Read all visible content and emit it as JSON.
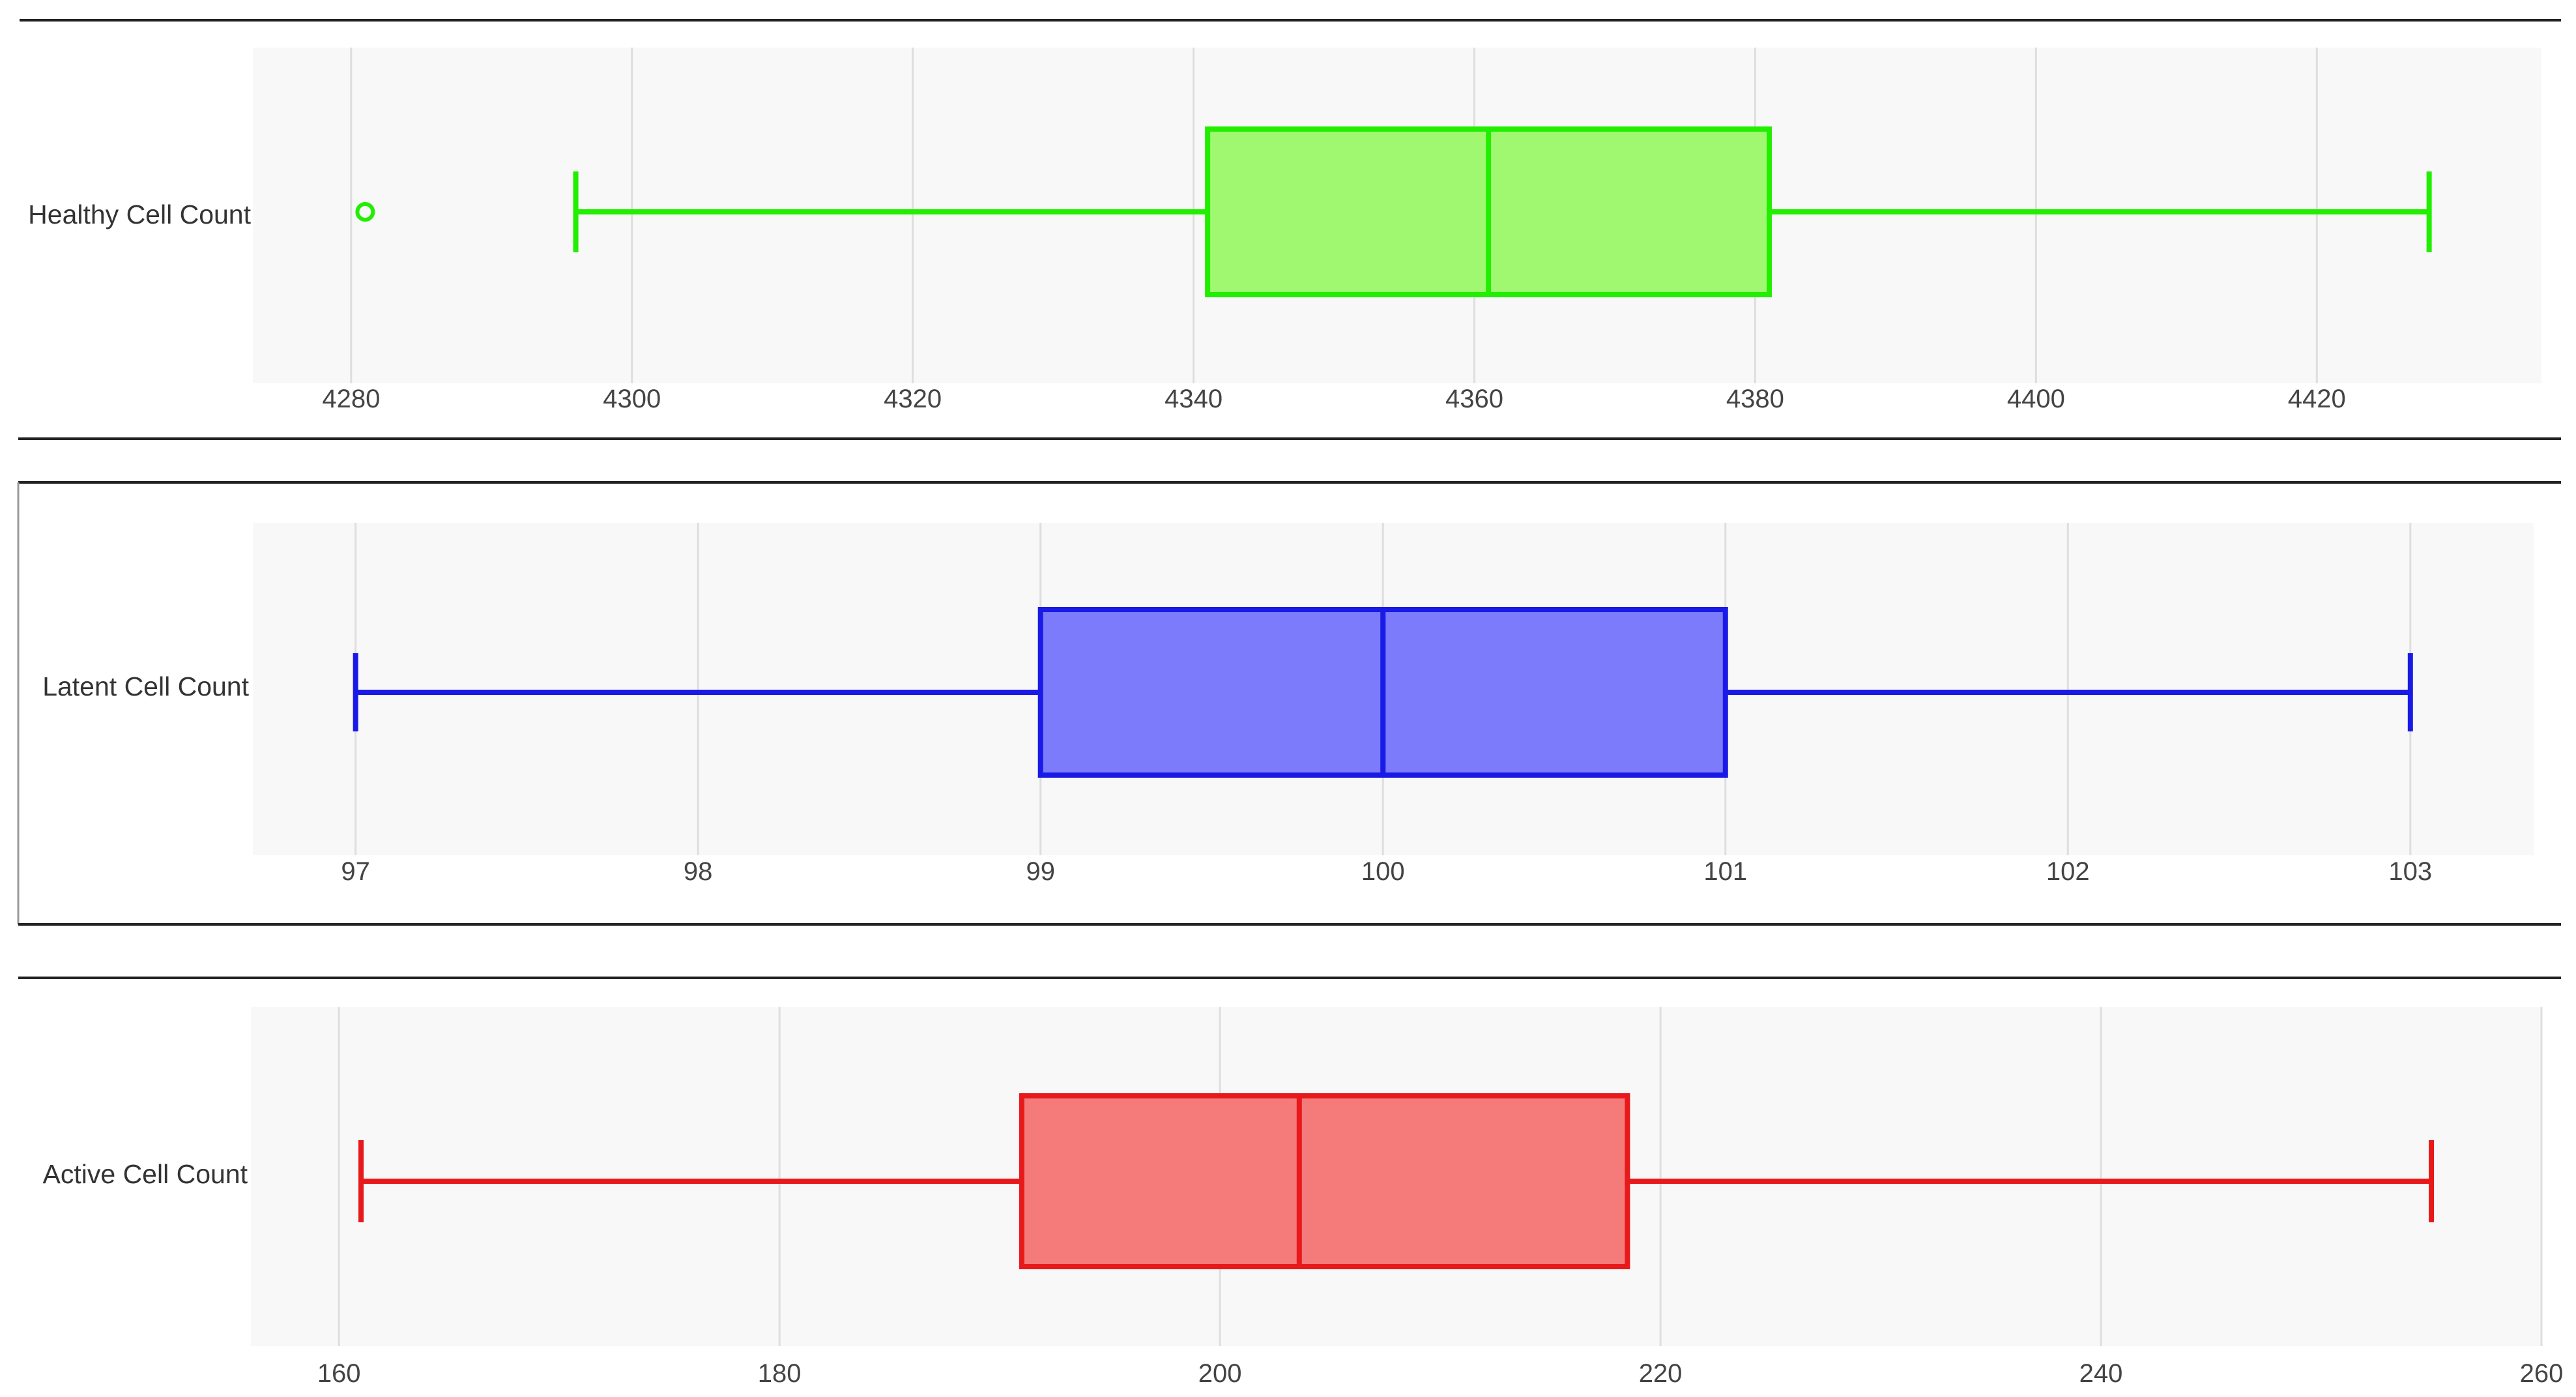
{
  "chart_data": [
    {
      "type": "boxplot",
      "orientation": "horizontal",
      "category": "Healthy Cell Count",
      "xlim": [
        4273,
        4436
      ],
      "ticks": [
        4280,
        4300,
        4320,
        4340,
        4360,
        4380,
        4400,
        4420
      ],
      "tick_labels": [
        "4280",
        "4300",
        "4320",
        "4340",
        "4360",
        "4380",
        "4400",
        "4420"
      ],
      "grid": true,
      "color": "#22ee00",
      "fill": "#a0f870",
      "stats": {
        "min": 4296,
        "q1": 4341,
        "median": 4361,
        "q3": 4381,
        "max": 4428
      },
      "outliers": [
        4281
      ]
    },
    {
      "type": "boxplot",
      "orientation": "horizontal",
      "category": "Latent Cell Count",
      "xlim": [
        96.7,
        103.36
      ],
      "ticks": [
        97,
        98,
        99,
        100,
        101,
        102,
        103
      ],
      "tick_labels": [
        "97",
        "98",
        "99",
        "100",
        "101",
        "102",
        "103"
      ],
      "grid": true,
      "color": "#1a1ae6",
      "fill": "#7b7bfb",
      "stats": {
        "min": 97,
        "q1": 99,
        "median": 100,
        "q3": 101,
        "max": 103
      },
      "outliers": []
    },
    {
      "type": "boxplot",
      "orientation": "horizontal",
      "category": "Active Cell Count",
      "xlim": [
        156,
        260
      ],
      "ticks": [
        160,
        180,
        200,
        220,
        240,
        260
      ],
      "tick_labels": [
        "160",
        "180",
        "200",
        "220",
        "240",
        "260"
      ],
      "grid": true,
      "color": "#e8191b",
      "fill": "#f47b7a",
      "stats": {
        "min": 161,
        "q1": 191,
        "median": 203.6,
        "q3": 218.5,
        "max": 255
      },
      "outliers": []
    }
  ]
}
